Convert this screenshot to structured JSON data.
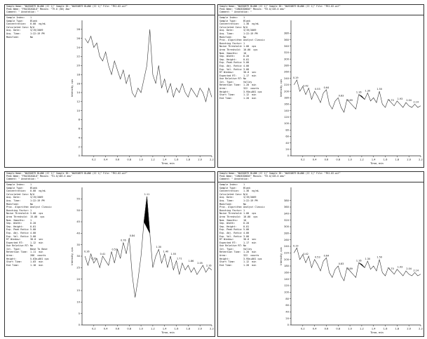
{
  "panels": [
    {
      "header": {
        "line1": "Sample Name: \"WASS0879 BLANK (CC 1)\"   Sample ID: \"WASS0879 BLANK (CC 1)\"   File: \"FK1.02.wif\"",
        "line2": "Peak Name: \"FRACDIAGOLD\"   Masses: \"79.0 (80) Amu\"",
        "line3": "Comment: \"   Annotation: \""
      },
      "info": [
        {
          "k": "Sample Index:",
          "v": "1"
        },
        {
          "k": "Sample Type:",
          "v": "Blank"
        },
        {
          "k": "Concentration:",
          "v": "0.00  ng/mL"
        },
        {
          "k": "Calculated Conc:",
          "v": "N/A"
        },
        {
          "k": "Acq. Date:",
          "v": "3/19/2009"
        },
        {
          "k": "Acq. Time:",
          "v": "1:22:19 PM"
        },
        {
          "k": "",
          "v": ""
        },
        {
          "k": "Modified:",
          "v": "No"
        }
      ],
      "y_axis_label": "Intensity, cps",
      "x_axis_label": "Time, min"
    },
    {
      "header": {
        "line1": "Sample Name: \"WASS0879 BLANK (CC 1)\"   Sample ID: \"WASS0879 BLANK (CC 1)\"   File: \"FK1.02.wif\"",
        "line2": "Peak Name: \"CONGEZONGUE\"   Masses: \"93.0/103.0 amu\"",
        "line3": "Comment: \"   Annotation: \""
      },
      "info": [
        {
          "k": "Sample Index:",
          "v": "1"
        },
        {
          "k": "Sample Type:",
          "v": "Blank"
        },
        {
          "k": "Concentration:",
          "v": "1.38  ng/mL"
        },
        {
          "k": "Calculated Conc:",
          "v": "N/A"
        },
        {
          "k": "Acq. Date:",
          "v": "3/19/2009"
        },
        {
          "k": "Acq. Time:",
          "v": "1:22:19 PM"
        },
        {
          "k": "",
          "v": ""
        },
        {
          "k": "Modified:",
          "v": "No"
        },
        {
          "k": "Proc. Algorithm:",
          "v": "Analyst Classic"
        },
        {
          "k": "Bunching Factor:",
          "v": "1"
        },
        {
          "k": "Noise Threshold:",
          "v": "1.00  cps"
        },
        {
          "k": "Area Threshold:",
          "v": "10.00  cps"
        },
        {
          "k": "Num. Smooths:",
          "v": "10"
        },
        {
          "k": "Sep. Width:",
          "v": "0.20"
        },
        {
          "k": "Sep. Height:",
          "v": "0.01"
        },
        {
          "k": "Exp. Peak Ratio:",
          "v": "5.00"
        },
        {
          "k": "Exp. Adj. Ratio:",
          "v": "4.00"
        },
        {
          "k": "Exp. Val. Ratio:",
          "v": "3.00"
        },
        {
          "k": "RT Window:",
          "v": "30.0  sec"
        },
        {
          "k": "Expected RT:",
          "v": "1.17  min"
        },
        {
          "k": "Use Relative RT:",
          "v": "No"
        },
        {
          "k": "",
          "v": ""
        },
        {
          "k": "Int. Type:",
          "v": "Valley"
        },
        {
          "k": "Retention Time:",
          "v": "1.20  min"
        },
        {
          "k": "Area:",
          "v": "322  counts"
        },
        {
          "k": "Height:",
          "v": "3.95e+001 cps"
        },
        {
          "k": "Start Time:",
          "v": "1.12  min"
        },
        {
          "k": "End Time:",
          "v": "1.28  min"
        }
      ],
      "y_axis_label": "Intensity, cps",
      "x_axis_label": "Time, min"
    },
    {
      "header": {
        "line1": "Sample Name: \"WASS0879 BLANK (CC 1)\"   Sample ID: \"WASS0879 BLANK (CC 1)\"   File: \"FK1.02.wif\"",
        "line2": "Peak Name: \"FRACDIAGOLD\"   Masses: \"91.0/403.0 amu\"",
        "line3": "Comment: \"   Annotation: \""
      },
      "info": [
        {
          "k": "Sample Index:",
          "v": "1"
        },
        {
          "k": "Sample Type:",
          "v": "Blank"
        },
        {
          "k": "Concentration:",
          "v": "0.00  ng/mL"
        },
        {
          "k": "Calculated Conc:",
          "v": "N/A"
        },
        {
          "k": "Acq. Date:",
          "v": "3/19/2009"
        },
        {
          "k": "Acq. Time:",
          "v": "1:22:19 PM"
        },
        {
          "k": "",
          "v": ""
        },
        {
          "k": "Modified:",
          "v": "No"
        },
        {
          "k": "Proc. Algorithm:",
          "v": "Analyst Classic"
        },
        {
          "k": "Bunching Factor:",
          "v": "1"
        },
        {
          "k": "Noise Threshold:",
          "v": "3.00  cps"
        },
        {
          "k": "Area Threshold:",
          "v": "15.00  cps"
        },
        {
          "k": "Num. Smooths:",
          "v": "1"
        },
        {
          "k": "Sep. Width:",
          "v": "0.20"
        },
        {
          "k": "Sep. Height:",
          "v": "0.01"
        },
        {
          "k": "Exp. Peak Ratio:",
          "v": "5.00"
        },
        {
          "k": "Exp. Adj. Ratio:",
          "v": "4.00"
        },
        {
          "k": "Exp. Val. Ratio:",
          "v": "3.00"
        },
        {
          "k": "RT Window:",
          "v": "30.0  sec"
        },
        {
          "k": "Expected RT:",
          "v": "1.12  min"
        },
        {
          "k": "Use Relative RT:",
          "v": "No"
        },
        {
          "k": "",
          "v": ""
        },
        {
          "k": "Int. Type:",
          "v": "Base To Base"
        },
        {
          "k": "Retention Time:",
          "v": "1.11  min"
        },
        {
          "k": "Area:",
          "v": "286  counts"
        },
        {
          "k": "Height:",
          "v": "5.63e+001 cps"
        },
        {
          "k": "Start Time:",
          "v": "1.03  min"
        },
        {
          "k": "End Time:",
          "v": "1.18  min"
        }
      ],
      "y_axis_label": "Intensity, cps",
      "x_axis_label": "Time, min"
    },
    {
      "header": {
        "line1": "Sample Name: \"WASS0879 BLANK (CC 1)\"   Sample ID: \"WASS0879 BLANK (CC 1)\"   File: \"FK1.02.wif\"",
        "line2": "Peak Name: \"CONGEZONGUE\"   Masses: \"93.0/103.0 amu\"",
        "line3": "Comment: \"   Annotation: \""
      },
      "info": [
        {
          "k": "Sample Index:",
          "v": "1"
        },
        {
          "k": "Sample Type:",
          "v": "Blank"
        },
        {
          "k": "Concentration:",
          "v": "1.38  ng/mL"
        },
        {
          "k": "Calculated Conc:",
          "v": "N/A"
        },
        {
          "k": "Acq. Date:",
          "v": "3/19/2009"
        },
        {
          "k": "Acq. Time:",
          "v": "1:22:19 PM"
        },
        {
          "k": "",
          "v": ""
        },
        {
          "k": "Modified:",
          "v": "No"
        },
        {
          "k": "Proc. Algorithm:",
          "v": "Analyst Classic"
        },
        {
          "k": "Bunching Factor:",
          "v": "1"
        },
        {
          "k": "Noise Threshold:",
          "v": "1.00  cps"
        },
        {
          "k": "Area Threshold:",
          "v": "10.00  cps"
        },
        {
          "k": "Num. Smooths:",
          "v": "10"
        },
        {
          "k": "Sep. Width:",
          "v": "0.20"
        },
        {
          "k": "Sep. Height:",
          "v": "0.01"
        },
        {
          "k": "Exp. Peak Ratio:",
          "v": "5.00"
        },
        {
          "k": "Exp. Adj. Ratio:",
          "v": "4.00"
        },
        {
          "k": "Exp. Val. Ratio:",
          "v": "3.00"
        },
        {
          "k": "RT Window:",
          "v": "30.0  sec"
        },
        {
          "k": "Expected RT:",
          "v": "1.17  min"
        },
        {
          "k": "Use Relative RT:",
          "v": "No"
        },
        {
          "k": "",
          "v": ""
        },
        {
          "k": "Int. Type:",
          "v": "Valley"
        },
        {
          "k": "Retention Time:",
          "v": "1.20  min"
        },
        {
          "k": "Area:",
          "v": "322  counts"
        },
        {
          "k": "Height:",
          "v": "3.95e+001 cps"
        },
        {
          "k": "Start Time:",
          "v": "1.12  min"
        },
        {
          "k": "End Time:",
          "v": "1.28  min"
        }
      ],
      "y_axis_label": "Intensity, cps",
      "x_axis_label": "Time, min"
    }
  ],
  "chart_data": [
    {
      "type": "line",
      "xlim": [
        0,
        2.2
      ],
      "ylim": [
        0,
        30
      ],
      "xticks": [
        "0.2",
        "0.4",
        "0.6",
        "0.8",
        "1.0",
        "1.2",
        "1.4",
        "1.6",
        "1.8",
        "2.0",
        "2.2"
      ],
      "yticks": [
        "0",
        "2",
        "4",
        "6",
        "8",
        "10",
        "12",
        "14",
        "16",
        "18",
        "20",
        "22",
        "24",
        "26",
        "28"
      ],
      "x": [
        0.05,
        0.1,
        0.15,
        0.2,
        0.25,
        0.3,
        0.35,
        0.4,
        0.45,
        0.5,
        0.55,
        0.6,
        0.65,
        0.7,
        0.75,
        0.8,
        0.85,
        0.9,
        0.95,
        1.0,
        1.05,
        1.1,
        1.15,
        1.2,
        1.25,
        1.3,
        1.35,
        1.4,
        1.45,
        1.5,
        1.55,
        1.6,
        1.65,
        1.7,
        1.75,
        1.8,
        1.85,
        1.9,
        1.95,
        2.0,
        2.05,
        2.1,
        2.15,
        2.2
      ],
      "y": [
        26,
        25,
        26.5,
        24,
        25,
        22,
        21,
        23,
        20,
        18,
        21,
        19,
        17,
        19,
        16,
        18,
        14,
        13,
        15,
        14,
        17,
        20,
        28,
        18,
        16,
        20,
        15,
        17,
        14,
        16,
        13,
        15,
        14,
        16,
        14,
        13,
        15,
        14,
        13,
        15,
        14,
        12,
        15,
        13
      ],
      "peak_labels": []
    },
    {
      "type": "line",
      "xlim": [
        0,
        2.2
      ],
      "ylim": [
        0,
        420
      ],
      "xticks": [
        "0.2",
        "0.4",
        "0.6",
        "0.8",
        "1.0",
        "1.2",
        "1.4",
        "1.6",
        "1.8",
        "2.0",
        "2.2"
      ],
      "yticks": [
        "0",
        "20",
        "40",
        "60",
        "80",
        "100",
        "120",
        "140",
        "160",
        "180",
        "200",
        "220",
        "240",
        "260",
        "280",
        "300",
        "320",
        "340",
        "360",
        "380"
      ],
      "x": [
        0.05,
        0.1,
        0.15,
        0.2,
        0.25,
        0.3,
        0.35,
        0.4,
        0.45,
        0.5,
        0.55,
        0.6,
        0.65,
        0.7,
        0.75,
        0.8,
        0.85,
        0.9,
        0.95,
        1.0,
        1.05,
        1.1,
        1.15,
        1.2,
        1.25,
        1.3,
        1.35,
        1.4,
        1.45,
        1.5,
        1.55,
        1.6,
        1.65,
        1.7,
        1.75,
        1.8,
        1.85,
        1.9,
        1.95,
        2.0,
        2.05,
        2.1,
        2.15,
        2.2
      ],
      "y": [
        220,
        235,
        200,
        215,
        190,
        210,
        175,
        200,
        185,
        165,
        195,
        205,
        160,
        145,
        170,
        180,
        150,
        135,
        175,
        165,
        155,
        145,
        190,
        185,
        175,
        195,
        170,
        180,
        165,
        200,
        160,
        150,
        175,
        165,
        155,
        170,
        160,
        150,
        165,
        155,
        150,
        160,
        150,
        155
      ],
      "shaded": {
        "start": 1.12,
        "end": 1.28
      },
      "peak_labels": [
        {
          "x": 0.08,
          "y": 235,
          "text": "0.19"
        },
        {
          "x": 0.25,
          "y": 210,
          "text": "0.42"
        },
        {
          "x": 0.45,
          "y": 200,
          "text": "0.53"
        },
        {
          "x": 0.6,
          "y": 205,
          "text": "0.64"
        },
        {
          "x": 0.85,
          "y": 180,
          "text": "0.83"
        },
        {
          "x": 1.0,
          "y": 165,
          "text": "0.89"
        },
        {
          "x": 1.15,
          "y": 190,
          "text": "1.16"
        },
        {
          "x": 1.3,
          "y": 195,
          "text": "1.30"
        },
        {
          "x": 1.5,
          "y": 200,
          "text": "1.50"
        },
        {
          "x": 1.7,
          "y": 165,
          "text": "1.70"
        },
        {
          "x": 1.85,
          "y": 170,
          "text": "1.93"
        },
        {
          "x": 2.0,
          "y": 165,
          "text": "2.04"
        },
        {
          "x": 2.12,
          "y": 160,
          "text": "2.14"
        }
      ]
    },
    {
      "type": "line",
      "xlim": [
        0,
        2.2
      ],
      "ylim": [
        0,
        60
      ],
      "xticks": [
        "0.2",
        "0.4",
        "0.6",
        "0.8",
        "1.0",
        "1.2",
        "1.4",
        "1.6",
        "1.8",
        "2.0",
        "2.2"
      ],
      "yticks": [
        "0",
        "5",
        "10",
        "15",
        "20",
        "25",
        "30",
        "35",
        "40",
        "45",
        "50",
        "55"
      ],
      "x": [
        0.05,
        0.1,
        0.15,
        0.2,
        0.25,
        0.3,
        0.35,
        0.4,
        0.45,
        0.5,
        0.55,
        0.6,
        0.65,
        0.7,
        0.75,
        0.8,
        0.85,
        0.9,
        0.95,
        1.0,
        1.05,
        1.1,
        1.15,
        1.2,
        1.25,
        1.3,
        1.35,
        1.4,
        1.45,
        1.5,
        1.55,
        1.6,
        1.65,
        1.7,
        1.75,
        1.8,
        1.85,
        1.9,
        1.95,
        2.0,
        2.05,
        2.1,
        2.15,
        2.2
      ],
      "y": [
        30,
        26,
        31,
        27,
        29,
        25,
        30,
        28,
        26,
        32,
        27,
        33,
        29,
        36,
        31,
        38,
        22,
        12,
        20,
        30,
        45,
        56,
        40,
        25,
        30,
        33,
        27,
        31,
        25,
        30,
        24,
        28,
        22,
        27,
        24,
        26,
        23,
        25,
        22,
        24,
        26,
        23,
        25,
        24
      ],
      "shaded": {
        "start": 1.03,
        "end": 1.18
      },
      "peak_labels": [
        {
          "x": 0.08,
          "y": 31,
          "text": "0.16"
        },
        {
          "x": 0.2,
          "y": 28,
          "text": "0.29"
        },
        {
          "x": 0.35,
          "y": 30,
          "text": "0.41"
        },
        {
          "x": 0.55,
          "y": 32,
          "text": "0.53"
        },
        {
          "x": 0.7,
          "y": 36,
          "text": "0.76"
        },
        {
          "x": 0.85,
          "y": 38,
          "text": "0.84"
        },
        {
          "x": 1.1,
          "y": 56,
          "text": "1.11"
        },
        {
          "x": 1.3,
          "y": 33,
          "text": "1.30"
        },
        {
          "x": 1.42,
          "y": 31,
          "text": "1.40"
        },
        {
          "x": 1.55,
          "y": 30,
          "text": "1.55"
        },
        {
          "x": 1.65,
          "y": 28,
          "text": "1.71"
        },
        {
          "x": 1.85,
          "y": 27,
          "text": "1.86"
        },
        {
          "x": 2.0,
          "y": 26,
          "text": "2.05"
        },
        {
          "x": 2.15,
          "y": 25,
          "text": "2.16"
        }
      ]
    },
    {
      "type": "line",
      "xlim": [
        0,
        2.2
      ],
      "ylim": [
        0,
        420
      ],
      "xticks": [
        "0.2",
        "0.4",
        "0.6",
        "0.8",
        "1.0",
        "1.2",
        "1.4",
        "1.6",
        "1.8",
        "2.0",
        "2.2"
      ],
      "yticks": [
        "0",
        "20",
        "40",
        "60",
        "80",
        "100",
        "120",
        "140",
        "160",
        "180",
        "200",
        "220",
        "240",
        "260",
        "280",
        "300",
        "320",
        "340",
        "360",
        "380"
      ],
      "x": [
        0.05,
        0.1,
        0.15,
        0.2,
        0.25,
        0.3,
        0.35,
        0.4,
        0.45,
        0.5,
        0.55,
        0.6,
        0.65,
        0.7,
        0.75,
        0.8,
        0.85,
        0.9,
        0.95,
        1.0,
        1.05,
        1.1,
        1.15,
        1.2,
        1.25,
        1.3,
        1.35,
        1.4,
        1.45,
        1.5,
        1.55,
        1.6,
        1.65,
        1.7,
        1.75,
        1.8,
        1.85,
        1.9,
        1.95,
        2.0,
        2.05,
        2.1,
        2.15,
        2.2
      ],
      "y": [
        220,
        235,
        200,
        215,
        190,
        210,
        175,
        200,
        185,
        165,
        195,
        205,
        160,
        145,
        170,
        180,
        150,
        135,
        175,
        165,
        155,
        145,
        190,
        185,
        175,
        195,
        170,
        180,
        165,
        200,
        160,
        150,
        175,
        165,
        155,
        170,
        160,
        150,
        165,
        155,
        150,
        160,
        150,
        155
      ],
      "shaded": {
        "start": 1.12,
        "end": 1.28
      },
      "peak_labels": [
        {
          "x": 0.08,
          "y": 235,
          "text": "0.19"
        },
        {
          "x": 0.25,
          "y": 210,
          "text": "0.42"
        },
        {
          "x": 0.45,
          "y": 200,
          "text": "0.53"
        },
        {
          "x": 0.6,
          "y": 205,
          "text": "0.64"
        },
        {
          "x": 0.85,
          "y": 180,
          "text": "0.83"
        },
        {
          "x": 1.0,
          "y": 165,
          "text": "0.89"
        },
        {
          "x": 1.15,
          "y": 190,
          "text": "1.16"
        },
        {
          "x": 1.3,
          "y": 195,
          "text": "1.30"
        },
        {
          "x": 1.5,
          "y": 200,
          "text": "1.50"
        },
        {
          "x": 1.7,
          "y": 165,
          "text": "1.70"
        },
        {
          "x": 1.85,
          "y": 170,
          "text": "1.93"
        },
        {
          "x": 2.0,
          "y": 165,
          "text": "2.04"
        },
        {
          "x": 2.12,
          "y": 160,
          "text": "2.14"
        }
      ]
    }
  ]
}
